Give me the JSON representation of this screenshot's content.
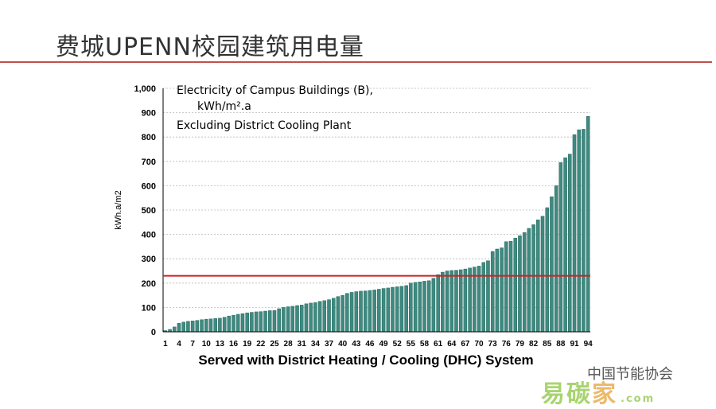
{
  "slide": {
    "title": "费城UPENN校园建筑用电量"
  },
  "chart_data": {
    "type": "bar",
    "ylabel": "kWh.a/m2",
    "xlabel": "Served with District Heating / Cooling (DHC) System",
    "ylim": [
      0,
      1000
    ],
    "yticks": [
      0,
      100,
      200,
      300,
      400,
      500,
      600,
      700,
      800,
      900,
      1000
    ],
    "ytick_labels": [
      "0",
      "100",
      "200",
      "300",
      "400",
      "500",
      "600",
      "700",
      "800",
      "900",
      "1,000"
    ],
    "xtick_labels": [
      "1",
      "4",
      "7",
      "10",
      "13",
      "16",
      "19",
      "22",
      "25",
      "28",
      "31",
      "34",
      "37",
      "40",
      "43",
      "46",
      "49",
      "52",
      "55",
      "58",
      "61",
      "64",
      "67",
      "70",
      "73",
      "76",
      "79",
      "82",
      "85",
      "88",
      "91",
      "94"
    ],
    "annotations": [
      "Electricity of Campus Buildings (B),",
      "kWh/m².a",
      "Excluding District Cooling Plant"
    ],
    "reference_line": {
      "value": 230,
      "color": "#cc2222"
    },
    "bar_color": "#3e8a80",
    "grid": true,
    "legend": "none",
    "categories": [
      1,
      2,
      3,
      4,
      5,
      6,
      7,
      8,
      9,
      10,
      11,
      12,
      13,
      14,
      15,
      16,
      17,
      18,
      19,
      20,
      21,
      22,
      23,
      24,
      25,
      26,
      27,
      28,
      29,
      30,
      31,
      32,
      33,
      34,
      35,
      36,
      37,
      38,
      39,
      40,
      41,
      42,
      43,
      44,
      45,
      46,
      47,
      48,
      49,
      50,
      51,
      52,
      53,
      54,
      55,
      56,
      57,
      58,
      59,
      60,
      61,
      62,
      63,
      64,
      65,
      66,
      67,
      68,
      69,
      70,
      71,
      72,
      73,
      74,
      75,
      76,
      77,
      78,
      79,
      80,
      81,
      82,
      83,
      84,
      85,
      86,
      87,
      88,
      89,
      90,
      91,
      92,
      93,
      94
    ],
    "values": [
      5,
      10,
      20,
      35,
      40,
      43,
      45,
      47,
      50,
      52,
      53,
      55,
      56,
      60,
      65,
      68,
      72,
      75,
      78,
      80,
      82,
      83,
      85,
      87,
      88,
      95,
      100,
      103,
      105,
      108,
      110,
      115,
      118,
      120,
      125,
      128,
      132,
      138,
      145,
      150,
      158,
      162,
      165,
      167,
      168,
      170,
      172,
      175,
      178,
      180,
      183,
      185,
      187,
      190,
      200,
      203,
      205,
      208,
      210,
      220,
      235,
      245,
      250,
      252,
      253,
      255,
      258,
      262,
      266,
      270,
      285,
      292,
      330,
      340,
      345,
      370,
      372,
      385,
      395,
      408,
      425,
      440,
      460,
      475,
      510,
      555,
      600,
      695,
      715,
      730,
      810,
      830,
      832,
      885
    ]
  },
  "watermark": {
    "text": "中国节能协会",
    "logo_a": "易碳",
    "logo_b": "家",
    "logo_url": ".com"
  }
}
